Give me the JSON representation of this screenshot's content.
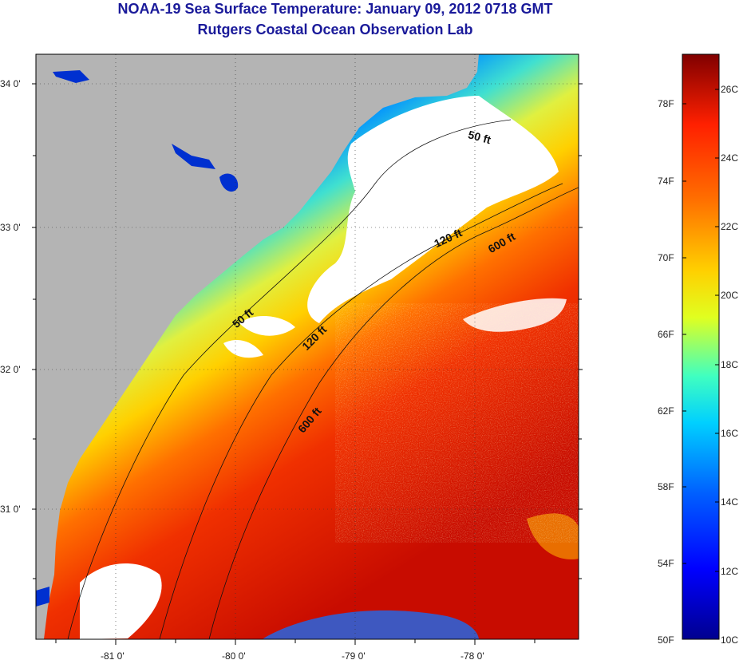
{
  "title": {
    "line1": "NOAA-19 Sea Surface Temperature:  January 09, 2012 0718 GMT",
    "line2": "Rutgers Coastal Ocean Observation Lab"
  },
  "map": {
    "lat_ticks": [
      "34 0'",
      "33 0'",
      "32 0'",
      "31 0'"
    ],
    "lon_ticks": [
      "-81 0'",
      "-80 0'",
      "-79 0'",
      "-78 0'"
    ],
    "contours": [
      {
        "name": "50 ft",
        "label": "50 ft"
      },
      {
        "name": "120 ft",
        "label": "120 ft"
      },
      {
        "name": "600 ft",
        "label": "600 ft"
      }
    ],
    "contour_labels": [
      "50 ft",
      "120 ft",
      "600 ft",
      "50 ft",
      "120 ft",
      "600 ft"
    ],
    "colors": {
      "land": "#b4b4b4",
      "cloud": "#ffffff",
      "cold": "#00008f",
      "warm": "#cc1000"
    }
  },
  "colorbar": {
    "fahrenheit_labels": [
      "78F",
      "74F",
      "70F",
      "66F",
      "62F",
      "58F",
      "54F",
      "50F"
    ],
    "celsius_labels": [
      "26C",
      "24C",
      "22C",
      "20C",
      "18C",
      "16C",
      "14C",
      "12C",
      "10C"
    ],
    "range_c": [
      10,
      27
    ]
  }
}
